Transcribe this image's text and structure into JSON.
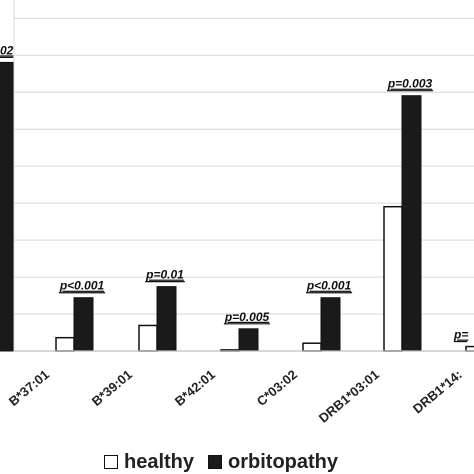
{
  "chart_data": {
    "type": "bar",
    "categories": [
      "",
      "B*37:01",
      "B*39:01",
      "B*42:01",
      "C*03:02",
      "DRB1*03:01",
      "DRB1*14:"
    ],
    "series": [
      {
        "name": "healthy",
        "values": [
          null,
          1.2,
          2.3,
          0.1,
          0.7,
          13.0,
          0.4
        ],
        "color": "#ffffff"
      },
      {
        "name": "orbitopathy",
        "values": [
          26.0,
          4.8,
          5.8,
          2.0,
          4.8,
          23.0,
          null
        ],
        "color": "#1a1a1a"
      }
    ],
    "annotations": [
      {
        "category": "",
        "text": "02"
      },
      {
        "category": "B*37:01",
        "text": "p<0.001"
      },
      {
        "category": "B*39:01",
        "text": "p=0.01"
      },
      {
        "category": "B*42:01",
        "text": "p=0.005"
      },
      {
        "category": "C*03:02",
        "text": "p<0.001"
      },
      {
        "category": "DRB1*03:01",
        "text": "p=0.003"
      },
      {
        "category": "DRB1*14:",
        "text": "p="
      }
    ],
    "ylim": [
      0,
      30
    ],
    "ytick_step": 3.33,
    "grid": true,
    "legend_position": "bottom"
  },
  "legend": {
    "healthy_label": "healthy",
    "orbitopathy_label": "orbitopathy"
  }
}
